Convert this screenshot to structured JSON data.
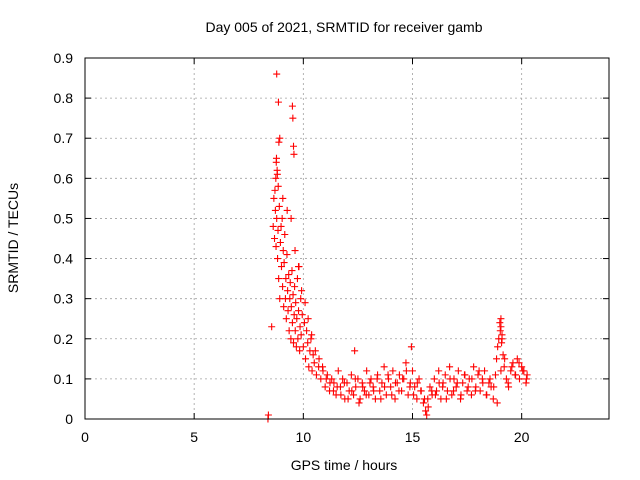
{
  "chart_data": {
    "type": "scatter",
    "title": "Day 005 of 2021, SRMTID for receiver gamb",
    "xlabel": "GPS time / hours",
    "ylabel": "SRMTID / TECUs",
    "xlim": [
      0,
      24
    ],
    "ylim": [
      0,
      0.9
    ],
    "xticks": [
      "0",
      "5",
      "10",
      "15",
      "20"
    ],
    "xtick_values": [
      0,
      5,
      10,
      15,
      20
    ],
    "yticks": [
      "0",
      "0.1",
      "0.2",
      "0.3",
      "0.4",
      "0.5",
      "0.6",
      "0.7",
      "0.8",
      "0.9"
    ],
    "ytick_values": [
      0,
      0.1,
      0.2,
      0.3,
      0.4,
      0.5,
      0.6,
      0.7,
      0.8,
      0.9
    ],
    "grid": true,
    "marker": "+",
    "series": [
      {
        "name": "SRMTID",
        "color": "#ff0000",
        "x": [
          8.38,
          8.4,
          8.55,
          8.62,
          8.65,
          8.68,
          8.7,
          8.72,
          8.74,
          8.75,
          8.77,
          8.78,
          8.8,
          8.82,
          8.84,
          8.85,
          8.87,
          8.9,
          8.92,
          8.95,
          8.98,
          9.0,
          9.03,
          9.05,
          9.08,
          9.1,
          9.12,
          9.15,
          9.18,
          9.2,
          9.22,
          9.25,
          9.28,
          9.3,
          9.33,
          9.35,
          9.38,
          9.4,
          9.43,
          9.45,
          9.48,
          9.5,
          9.53,
          9.55,
          9.58,
          9.6,
          9.63,
          9.65,
          9.68,
          9.7,
          9.73,
          9.75,
          9.78,
          9.8,
          9.83,
          9.85,
          9.88,
          9.9,
          9.95,
          10.0,
          10.05,
          10.1,
          10.15,
          10.2,
          10.25,
          10.3,
          10.35,
          10.4,
          10.45,
          10.5,
          10.6,
          10.7,
          10.8,
          10.9,
          11.0,
          11.1,
          11.2,
          11.3,
          11.4,
          11.5,
          11.6,
          11.7,
          11.8,
          11.9,
          12.0,
          12.1,
          12.2,
          12.3,
          12.4,
          12.5,
          12.6,
          12.7,
          12.8,
          12.9,
          13.0,
          13.1,
          13.2,
          13.3,
          13.4,
          13.5,
          13.6,
          13.7,
          13.8,
          13.9,
          14.0,
          14.1,
          14.2,
          14.3,
          14.4,
          14.5,
          14.6,
          14.7,
          14.8,
          14.9,
          15.0,
          15.1,
          15.2,
          15.3,
          15.4,
          15.5,
          15.6,
          15.65,
          15.7,
          15.8,
          15.9,
          16.0,
          16.1,
          16.2,
          16.3,
          16.4,
          16.5,
          16.6,
          16.7,
          16.8,
          16.9,
          17.0,
          17.1,
          17.2,
          17.3,
          17.4,
          17.5,
          17.6,
          17.7,
          17.8,
          17.9,
          18.0,
          18.1,
          18.2,
          18.3,
          18.4,
          18.5,
          18.6,
          18.7,
          18.8,
          18.85,
          18.9,
          18.95,
          19.0,
          19.02,
          19.05,
          19.08,
          19.1,
          19.15,
          19.2,
          19.3,
          19.4,
          19.5,
          19.6,
          19.7,
          19.8,
          19.9,
          20.0,
          20.1,
          20.2,
          20.25,
          8.78,
          8.86,
          8.92,
          9.5,
          9.52,
          9.55,
          9.57,
          8.88,
          8.76,
          8.81,
          9.06,
          9.26,
          9.44,
          9.62,
          9.78,
          9.92,
          10.08,
          10.22,
          10.38,
          10.55,
          10.72,
          10.88,
          11.05,
          11.22,
          11.38,
          11.55,
          11.72,
          11.88,
          12.05,
          12.22,
          12.38,
          12.55,
          12.72,
          12.88,
          13.05,
          13.22,
          13.38,
          13.55,
          13.72,
          13.88,
          14.05,
          14.22,
          14.38,
          14.55,
          14.72,
          14.88,
          15.05,
          15.22,
          15.38,
          15.55,
          15.72,
          15.88,
          16.05,
          16.22,
          16.38,
          16.55,
          16.72,
          16.88,
          17.05,
          17.22,
          17.38,
          17.55,
          17.72,
          17.88,
          18.05,
          18.22,
          18.38,
          18.55,
          18.72,
          18.88,
          19.05,
          19.22,
          19.38,
          19.55,
          19.72,
          19.88,
          20.05,
          20.22,
          12.35,
          14.95,
          19.05,
          19.1
        ],
        "y": [
          0.0,
          0.01,
          0.23,
          0.48,
          0.55,
          0.45,
          0.57,
          0.52,
          0.6,
          0.43,
          0.65,
          0.5,
          0.62,
          0.4,
          0.47,
          0.58,
          0.35,
          0.53,
          0.3,
          0.44,
          0.48,
          0.38,
          0.5,
          0.33,
          0.42,
          0.28,
          0.39,
          0.46,
          0.3,
          0.35,
          0.25,
          0.41,
          0.32,
          0.27,
          0.36,
          0.22,
          0.3,
          0.34,
          0.2,
          0.28,
          0.37,
          0.24,
          0.31,
          0.19,
          0.26,
          0.33,
          0.22,
          0.29,
          0.18,
          0.25,
          0.35,
          0.2,
          0.27,
          0.38,
          0.17,
          0.23,
          0.3,
          0.21,
          0.26,
          0.18,
          0.24,
          0.15,
          0.22,
          0.19,
          0.13,
          0.17,
          0.2,
          0.12,
          0.16,
          0.14,
          0.11,
          0.13,
          0.1,
          0.12,
          0.08,
          0.11,
          0.07,
          0.1,
          0.09,
          0.06,
          0.12,
          0.08,
          0.1,
          0.05,
          0.09,
          0.07,
          0.11,
          0.06,
          0.08,
          0.1,
          0.05,
          0.09,
          0.07,
          0.12,
          0.06,
          0.1,
          0.08,
          0.05,
          0.11,
          0.07,
          0.09,
          0.13,
          0.06,
          0.1,
          0.08,
          0.12,
          0.05,
          0.09,
          0.11,
          0.07,
          0.1,
          0.14,
          0.06,
          0.09,
          0.12,
          0.08,
          0.05,
          0.1,
          0.07,
          0.04,
          0.02,
          0.01,
          0.05,
          0.08,
          0.06,
          0.1,
          0.07,
          0.12,
          0.05,
          0.09,
          0.11,
          0.07,
          0.13,
          0.06,
          0.1,
          0.08,
          0.12,
          0.05,
          0.09,
          0.11,
          0.07,
          0.1,
          0.06,
          0.13,
          0.08,
          0.11,
          0.07,
          0.1,
          0.12,
          0.06,
          0.09,
          0.08,
          0.05,
          0.11,
          0.15,
          0.18,
          0.2,
          0.24,
          0.22,
          0.25,
          0.19,
          0.21,
          0.16,
          0.13,
          0.1,
          0.08,
          0.12,
          0.14,
          0.11,
          0.15,
          0.1,
          0.13,
          0.12,
          0.09,
          0.11,
          0.86,
          0.79,
          0.7,
          0.78,
          0.75,
          0.68,
          0.66,
          0.69,
          0.64,
          0.61,
          0.55,
          0.52,
          0.5,
          0.42,
          0.38,
          0.32,
          0.29,
          0.25,
          0.21,
          0.17,
          0.15,
          0.13,
          0.1,
          0.09,
          0.07,
          0.08,
          0.06,
          0.09,
          0.05,
          0.07,
          0.1,
          0.04,
          0.08,
          0.06,
          0.09,
          0.07,
          0.1,
          0.05,
          0.08,
          0.11,
          0.06,
          0.09,
          0.07,
          0.1,
          0.12,
          0.08,
          0.06,
          0.09,
          0.07,
          0.05,
          0.03,
          0.07,
          0.06,
          0.09,
          0.08,
          0.05,
          0.1,
          0.07,
          0.09,
          0.06,
          0.11,
          0.08,
          0.1,
          0.07,
          0.12,
          0.09,
          0.06,
          0.1,
          0.08,
          0.04,
          0.12,
          0.15,
          0.09,
          0.13,
          0.11,
          0.14,
          0.12,
          0.1,
          0.17,
          0.18,
          0.23,
          0.2
        ]
      }
    ]
  }
}
